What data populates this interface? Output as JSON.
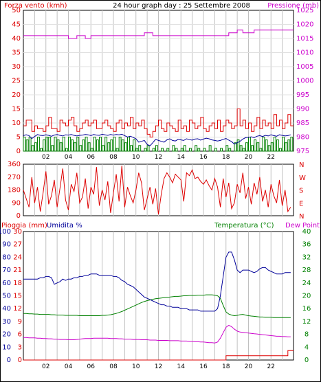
{
  "chart_data": [
    {
      "type": "line",
      "title": "24 hour graph day : 25 Settembre 2008",
      "left_label": "Forza vento (kmh)",
      "right_label": "Pressione (mb)",
      "x": [
        0,
        0.25,
        0.5,
        0.75,
        1,
        1.25,
        1.5,
        1.75,
        2,
        2.25,
        2.5,
        2.75,
        3,
        3.25,
        3.5,
        3.75,
        4,
        4.25,
        4.5,
        4.75,
        5,
        5.25,
        5.5,
        5.75,
        6,
        6.25,
        6.5,
        6.75,
        7,
        7.25,
        7.5,
        7.75,
        8,
        8.25,
        8.5,
        8.75,
        9,
        9.25,
        9.5,
        9.75,
        10,
        10.25,
        10.5,
        10.75,
        11,
        11.25,
        11.5,
        11.75,
        12,
        12.25,
        12.5,
        12.75,
        13,
        13.25,
        13.5,
        13.75,
        14,
        14.25,
        14.5,
        14.75,
        15,
        15.25,
        15.5,
        15.75,
        16,
        16.25,
        16.5,
        16.75,
        17,
        17.25,
        17.5,
        17.75,
        18,
        18.25,
        18.5,
        18.75,
        19,
        19.25,
        19.5,
        19.75,
        20,
        20.25,
        20.5,
        20.75,
        21,
        21.25,
        21.5,
        21.75,
        22,
        22.25,
        22.5,
        22.75,
        23,
        23.25,
        23.5,
        23.75
      ],
      "x_ticks": [
        "02",
        "04",
        "06",
        "08",
        "10",
        "12",
        "14",
        "16",
        "18",
        "20",
        "22"
      ],
      "ylim_left": [
        0,
        50
      ],
      "y_ticks_left": [
        "0",
        "5",
        "10",
        "15",
        "20",
        "25",
        "30",
        "35",
        "40",
        "45",
        "50"
      ],
      "ylim_right": [
        975,
        1025
      ],
      "y_ticks_right": [
        "975",
        "980",
        "985",
        "990",
        "995",
        "1000",
        "1005",
        "1010",
        "1015",
        "1020",
        "1025"
      ],
      "grid": "vertical every hour, horizontal every 5 kmh",
      "colors": {
        "raffica": "#dd0000",
        "media": "#000099",
        "direzione_bars": "#008000",
        "pressione": "#cc00cc",
        "grid": "#c0c0c0"
      },
      "series": [
        {
          "values": [
            9,
            11,
            11,
            7,
            9,
            8,
            8,
            7,
            9,
            12,
            8,
            8,
            7,
            11,
            10,
            9,
            11,
            12,
            9,
            7,
            8,
            10,
            11,
            9,
            10,
            11,
            8,
            8,
            10,
            11,
            9,
            8,
            7,
            10,
            11,
            8,
            10,
            9,
            12,
            8,
            10,
            9,
            11,
            8,
            6,
            5,
            7,
            9,
            11,
            8,
            7,
            10,
            9,
            8,
            7,
            11,
            8,
            9,
            7,
            11,
            10,
            8,
            9,
            12,
            8,
            7,
            9,
            10,
            8,
            11,
            7,
            9,
            11,
            10,
            8,
            9,
            15,
            9,
            11,
            8,
            10,
            7,
            9,
            12,
            8,
            11,
            9,
            10,
            8,
            13,
            9,
            11,
            8,
            10,
            13,
            9
          ],
          "style": "step"
        },
        {
          "values": [
            5.5,
            5.8,
            5.5,
            4.5,
            5.2,
            5.9,
            5.6,
            5.5,
            5.8,
            5.6,
            5.3,
            5.7,
            5.9,
            5.6,
            5.4,
            5.8,
            5.7,
            5.9,
            5.6,
            5.4,
            5.6,
            5.7,
            5.9,
            5.8,
            5.5,
            5.9,
            5.7,
            5.6,
            6,
            5.8,
            5.6,
            5.9,
            5.7,
            5.9,
            5.8,
            6,
            5.5,
            5,
            5.3,
            4.9,
            4.4,
            3.2,
            3.5,
            3.8,
            2.4,
            1.9,
            3,
            4.2,
            3.8,
            3.5,
            3.2,
            4,
            4.4,
            3.8,
            3.6,
            4.2,
            4,
            3.8,
            4.4,
            4.1,
            3.9,
            4.3,
            4.4,
            3.9,
            4.3,
            4.6,
            4.4,
            4,
            3.8,
            3.6,
            3.8,
            4.2,
            4.5,
            3.9,
            3.4,
            2.5,
            3,
            3.5,
            4.3,
            4.8,
            4.9,
            5.1,
            4.8,
            5.3,
            5.5,
            5.2,
            5.6,
            5.4,
            5.8,
            5.5,
            5.3,
            5.8,
            5.6,
            5.4,
            5.5,
            5.8
          ],
          "style": "line"
        },
        {
          "values": [
            5,
            4,
            5,
            2,
            3,
            5,
            1,
            4,
            5,
            5,
            2,
            5,
            4,
            3,
            5,
            1,
            5,
            4,
            3,
            5,
            2,
            4,
            5,
            3,
            1,
            5,
            4,
            5,
            2,
            5,
            3,
            4,
            5,
            1,
            5,
            4,
            3,
            5,
            2,
            4,
            1,
            2,
            0,
            1,
            2,
            0,
            1,
            2,
            0,
            1,
            0,
            1,
            0,
            2,
            1,
            0,
            1,
            2,
            0,
            1,
            0,
            2,
            1,
            0,
            1,
            0,
            2,
            0,
            1,
            0,
            1,
            0,
            2,
            1,
            0,
            3,
            4,
            2,
            1,
            3,
            5,
            2,
            4,
            3,
            1,
            5,
            4,
            2,
            3,
            5,
            4,
            1,
            5,
            3,
            4,
            5
          ],
          "style": "bars"
        },
        {
          "values": [
            1016,
            1016,
            1016,
            1016,
            1016,
            1016,
            1016,
            1016,
            1016,
            1016,
            1016,
            1016,
            1016,
            1016,
            1016,
            1016,
            1015,
            1015,
            1015,
            1016,
            1016,
            1016,
            1015,
            1015,
            1016,
            1016,
            1016,
            1016,
            1016,
            1016,
            1016,
            1016,
            1016,
            1016,
            1016,
            1016,
            1016,
            1016,
            1016,
            1016,
            1016,
            1016,
            1016,
            1017,
            1017,
            1017,
            1016,
            1016,
            1016,
            1016,
            1016,
            1016,
            1016,
            1016,
            1016,
            1016,
            1016,
            1016,
            1016,
            1016,
            1016,
            1016,
            1016,
            1016,
            1016,
            1016,
            1016,
            1016,
            1016,
            1016,
            1016,
            1016,
            1016,
            1017,
            1017,
            1017,
            1018,
            1018,
            1017,
            1017,
            1017,
            1017,
            1018,
            1018,
            1018,
            1018,
            1018,
            1018,
            1018,
            1018,
            1018,
            1018,
            1018,
            1018,
            1018,
            1018
          ],
          "axis": "right",
          "style": "step"
        }
      ]
    },
    {
      "type": "line",
      "ylim": [
        0,
        360
      ],
      "y_ticks_left": [
        "0",
        "90",
        "180",
        "270",
        "360"
      ],
      "y_ticks_right": [
        "N",
        "E",
        "S",
        "W",
        "N"
      ],
      "color": "#dd0000",
      "series": [
        {
          "values": [
            180,
            120,
            60,
            270,
            90,
            200,
            30,
            160,
            310,
            80,
            140,
            250,
            60,
            190,
            330,
            110,
            40,
            220,
            170,
            300,
            90,
            130,
            260,
            50,
            200,
            150,
            340,
            70,
            180,
            110,
            240,
            20,
            160,
            290,
            100,
            350,
            60,
            200,
            140,
            90,
            180,
            300,
            230,
            40,
            120,
            200,
            80,
            190,
            10,
            150,
            260,
            300,
            270,
            230,
            290,
            270,
            250,
            100,
            300,
            280,
            320,
            260,
            270,
            240,
            220,
            250,
            210,
            180,
            260,
            200,
            60,
            260,
            130,
            230,
            50,
            90,
            220,
            160,
            300,
            120,
            200,
            80,
            230,
            150,
            270,
            100,
            180,
            60,
            220,
            140,
            90,
            250,
            70,
            180,
            30,
            60
          ],
          "style": "line"
        }
      ]
    },
    {
      "type": "line",
      "left_label_1": "Pioggia (mm)",
      "left_label_2": "Umidita %",
      "right_label_1": "Temperatura (°C)",
      "right_label_2": "Dew Point",
      "y_ticks_humidity": [
        "0",
        "10",
        "20",
        "30",
        "40",
        "50",
        "60",
        "70",
        "80",
        "90",
        "100"
      ],
      "y_ticks_rain": [
        "0",
        "3",
        "6",
        "9",
        "12",
        "15",
        "18",
        "21",
        "24",
        "27",
        "30"
      ],
      "y_ticks_temp": [
        "0",
        "4",
        "8",
        "12",
        "16",
        "20",
        "24",
        "28",
        "32",
        "36",
        "40"
      ],
      "ylim_humidity": [
        0,
        100
      ],
      "ylim_rain": [
        0,
        30
      ],
      "ylim_temp": [
        0,
        40
      ],
      "colors": {
        "umidita": "#000099",
        "temperatura": "#008000",
        "dew_point": "#cc00cc",
        "pioggia": "#dd0000"
      },
      "series": [
        {
          "axis": "humidity",
          "values": [
            63,
            63,
            63,
            63,
            63,
            63,
            64,
            64,
            65,
            65,
            64,
            59,
            60,
            61,
            63,
            62,
            63,
            63,
            64,
            64,
            65,
            65,
            66,
            66,
            67,
            67,
            67,
            66,
            66,
            66,
            66,
            66,
            65,
            65,
            64,
            62,
            61,
            59,
            58,
            57,
            55,
            53,
            51,
            49,
            48,
            47,
            46,
            45,
            44,
            43,
            43,
            42,
            42,
            41,
            41,
            41,
            40,
            40,
            40,
            39,
            39,
            39,
            39,
            38,
            38,
            38,
            38,
            38,
            38,
            40,
            50,
            65,
            80,
            84,
            84,
            78,
            70,
            68,
            70,
            70,
            70,
            69,
            68,
            69,
            71,
            72,
            72,
            70,
            69,
            68,
            67,
            67,
            67,
            68,
            68,
            68
          ],
          "axis_name": "left"
        },
        {
          "axis": "temperature",
          "values": [
            14.5,
            14.5,
            14.4,
            14.4,
            14.3,
            14.3,
            14.2,
            14.2,
            14.2,
            14.2,
            14.1,
            14.1,
            14.0,
            14.0,
            14.0,
            13.9,
            13.9,
            13.9,
            13.9,
            13.9,
            13.8,
            13.8,
            13.8,
            13.8,
            13.8,
            13.8,
            13.8,
            13.8,
            13.9,
            13.9,
            14.0,
            14.1,
            14.3,
            14.5,
            14.8,
            15.1,
            15.5,
            15.9,
            16.3,
            16.7,
            17.1,
            17.5,
            17.9,
            18.2,
            18.5,
            18.7,
            18.9,
            19.1,
            19.2,
            19.3,
            19.4,
            19.5,
            19.6,
            19.7,
            19.8,
            19.8,
            19.9,
            20.0,
            20.0,
            20.1,
            20.1,
            20.1,
            20.2,
            20.2,
            20.2,
            20.3,
            20.3,
            20.3,
            20.2,
            20.0,
            19.2,
            17.0,
            15.0,
            14.3,
            14.0,
            13.8,
            13.9,
            14.1,
            14.2,
            14.0,
            13.8,
            13.7,
            13.6,
            13.5,
            13.4,
            13.4,
            13.3,
            13.3,
            13.3,
            13.2,
            13.2,
            13.2,
            13.2,
            13.2,
            13.2,
            13.2
          ]
        },
        {
          "axis": "temperature",
          "values": [
            7.0,
            7.0,
            6.9,
            6.9,
            6.9,
            6.8,
            6.8,
            6.7,
            6.7,
            6.6,
            6.6,
            6.5,
            6.5,
            6.4,
            6.4,
            6.4,
            6.3,
            6.3,
            6.3,
            6.4,
            6.5,
            6.6,
            6.7,
            6.7,
            6.7,
            6.8,
            6.8,
            6.8,
            6.8,
            6.8,
            6.8,
            6.7,
            6.7,
            6.7,
            6.6,
            6.6,
            6.5,
            6.5,
            6.5,
            6.4,
            6.4,
            6.4,
            6.3,
            6.3,
            6.3,
            6.2,
            6.2,
            6.2,
            6.1,
            6.1,
            6.1,
            6.1,
            6.0,
            6.0,
            6.0,
            6.0,
            5.9,
            5.9,
            5.9,
            5.8,
            5.8,
            5.7,
            5.7,
            5.6,
            5.6,
            5.5,
            5.4,
            5.4,
            5.3,
            5.6,
            6.8,
            8.5,
            10.2,
            10.8,
            10.4,
            9.6,
            9.0,
            8.7,
            8.6,
            8.5,
            8.4,
            8.3,
            8.2,
            8.1,
            8.0,
            7.9,
            7.8,
            7.7,
            7.6,
            7.5,
            7.4,
            7.4,
            7.3,
            7.3,
            7.2,
            7.2
          ]
        },
        {
          "axis": "rain",
          "values": [
            0,
            0,
            0,
            0,
            0,
            0,
            0,
            0,
            0,
            0,
            0,
            0,
            0,
            0,
            0,
            0,
            0,
            0,
            0,
            0,
            0,
            0,
            0,
            0,
            0,
            0,
            0,
            0,
            0,
            0,
            0,
            0,
            0,
            0,
            0,
            0,
            0,
            0,
            0,
            0,
            0,
            0,
            0,
            0,
            0,
            0,
            0,
            0,
            0,
            0,
            0,
            0,
            0,
            0,
            0,
            0,
            0,
            0,
            0,
            0,
            0,
            0,
            0,
            0,
            0,
            0,
            0,
            0,
            0,
            0,
            0,
            0,
            1,
            1,
            1,
            1,
            1,
            1,
            1,
            1,
            1,
            1,
            1,
            1,
            1,
            1,
            1,
            1,
            1,
            1,
            1,
            1,
            1,
            1,
            2.2,
            2.2
          ],
          "style": "step"
        }
      ]
    }
  ]
}
